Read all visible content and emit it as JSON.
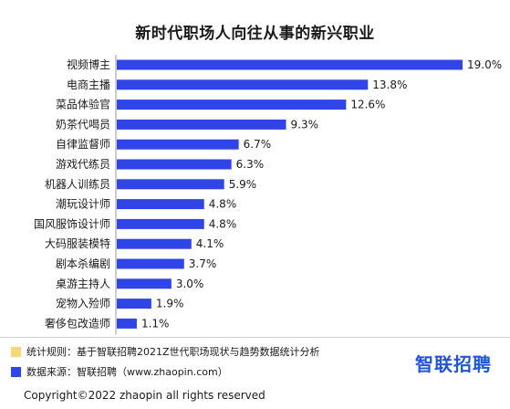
{
  "chart_data": {
    "type": "bar",
    "orientation": "horizontal",
    "title": "新时代职场人向往从事的新兴职业",
    "categories": [
      "视频博主",
      "电商主播",
      "菜品体验官",
      "奶茶代喝员",
      "自律监督师",
      "游戏代练员",
      "机器人训练员",
      "潮玩设计师",
      "国风服饰设计师",
      "大码服装模特",
      "剧本杀编剧",
      "桌游主持人",
      "宠物入殓师",
      "奢侈包改造师"
    ],
    "values": [
      19.0,
      13.8,
      12.6,
      9.3,
      6.7,
      6.3,
      5.9,
      4.8,
      4.8,
      4.1,
      3.7,
      3.0,
      1.9,
      1.1
    ],
    "value_labels": [
      "19.0%",
      "13.8%",
      "12.6%",
      "9.3%",
      "6.7%",
      "6.3%",
      "5.9%",
      "4.8%",
      "4.8%",
      "4.1%",
      "3.7%",
      "3.0%",
      "1.9%",
      "1.1%"
    ],
    "bar_color": "#2f45e8",
    "grid": false,
    "legend": "none"
  },
  "footer": {
    "note_stats": "统计规则：基于智联招聘2021Z世代职场现状与趋势数据统计分析",
    "note_stats_color": "#f7d77a",
    "note_source": "数据来源：智联招聘（www.zhaopin.com）",
    "note_source_color": "#2f45e8",
    "brand": "智联招聘",
    "brand_color": "#1f56d8",
    "copyright": "Copyright©2022 zhaopin all rights reserved"
  }
}
